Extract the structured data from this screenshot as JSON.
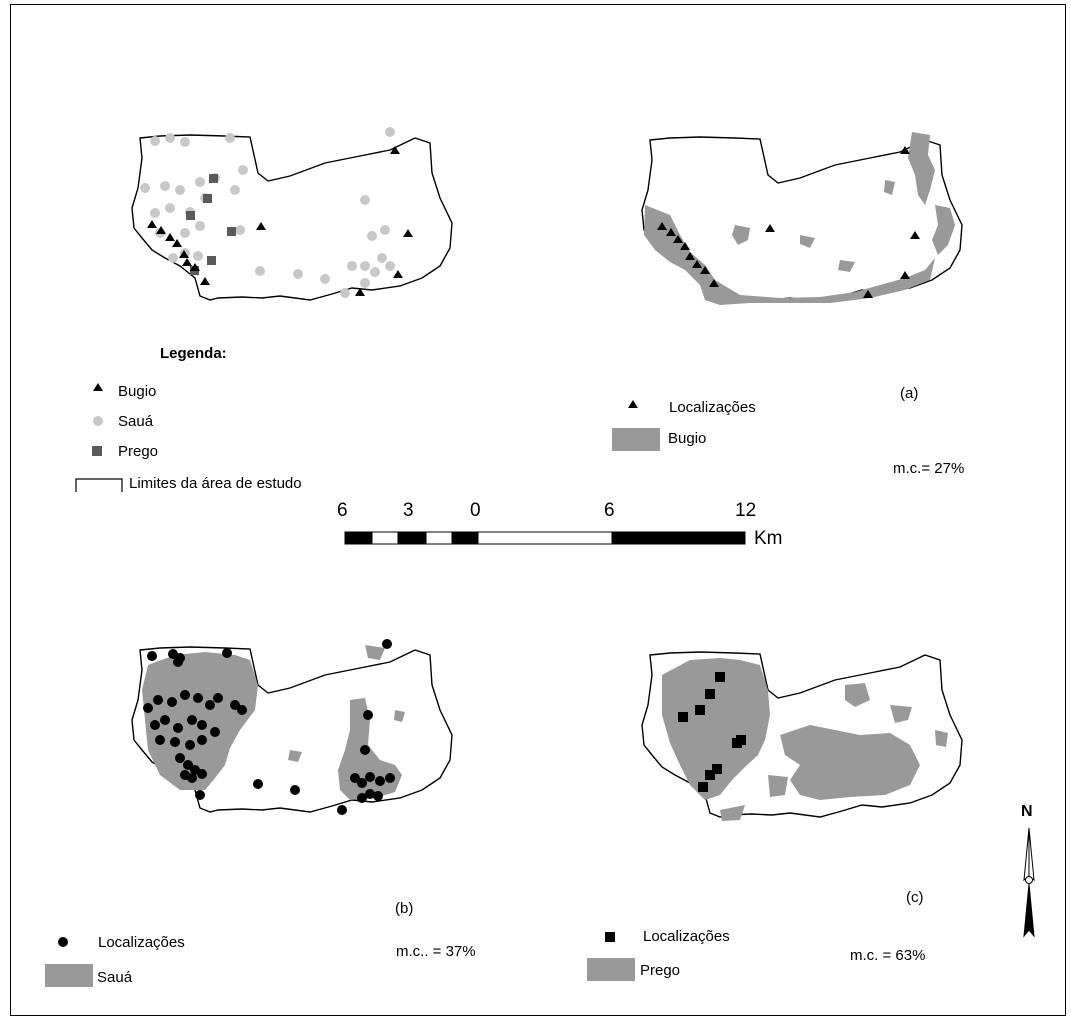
{
  "legend": {
    "title": "Legenda:",
    "items": [
      "Bugio",
      "Sauá",
      "Prego",
      "Limites da área de estudo"
    ]
  },
  "panels": {
    "a": {
      "label": "(a)",
      "points_label": "Localizações",
      "area_label": "Bugio",
      "mc": "m.c.= 27%"
    },
    "b": {
      "label": "(b)",
      "points_label": "Localizações",
      "area_label": "Sauá",
      "mc": "m.c.. = 37%"
    },
    "c": {
      "label": "(c)",
      "points_label": "Localizações",
      "area_label": "Prego",
      "mc": "m.c. = 63%"
    }
  },
  "scale_bar": {
    "ticks": [
      "6",
      "3",
      "0",
      "6",
      "12"
    ],
    "unit": "Km"
  },
  "north_arrow": {
    "label": "N"
  },
  "colors": {
    "bugio": "#000000",
    "saua_overview": "#c8c8c8",
    "prego_overview": "#5a5a5a",
    "habitat": "#999999",
    "outline": "#000000"
  }
}
